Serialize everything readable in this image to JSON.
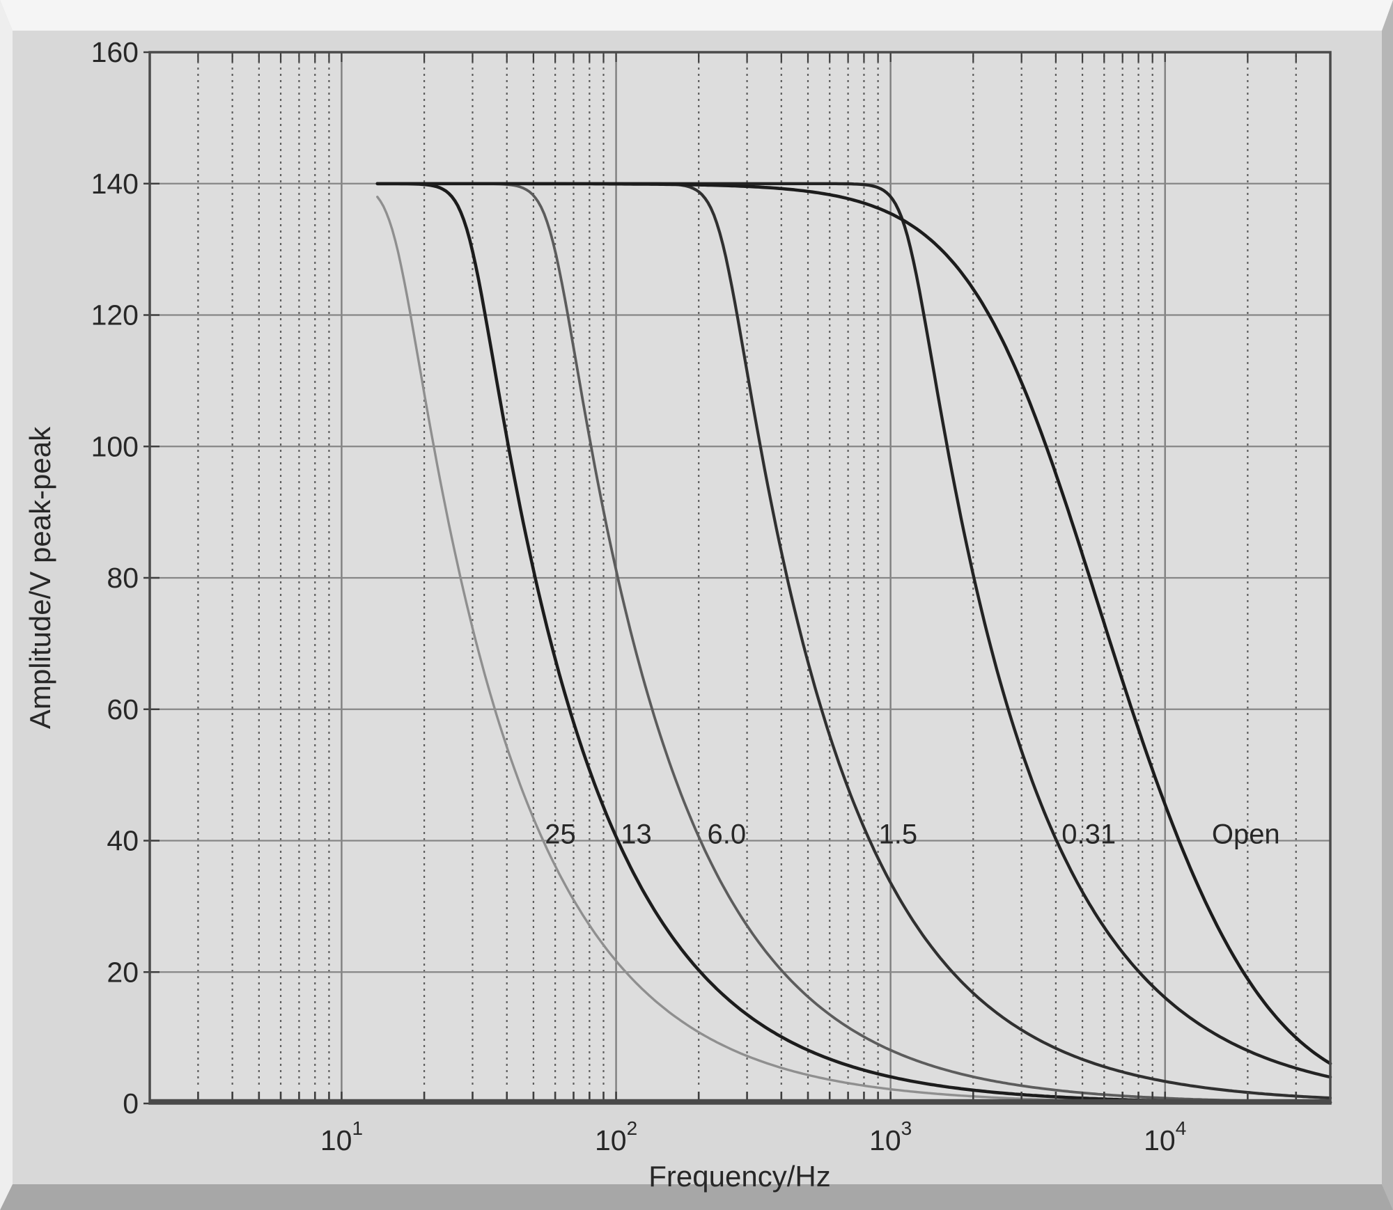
{
  "figure": {
    "background": "#d8d8d8",
    "plot_background": "#dddddd",
    "frame_colors": {
      "top_highlight": "#f5f5f5",
      "left_highlight": "#eeeeee",
      "right_shadow": "#b6b6b6",
      "bottom_shadow": "#a7a7a7"
    },
    "grid_colors": {
      "minor_dotted": "#5d5d5d",
      "major_vertical": "#7f7f7f",
      "major_horizontal": "#868686",
      "border": "#4a4a4a",
      "tick": "#3e3e3e"
    }
  },
  "chart_data": {
    "type": "line",
    "title": "",
    "xlabel": "Frequency/Hz",
    "ylabel": "Amplitude/V peak-peak",
    "x_scale": "log",
    "xlim": [
      2,
      40000
    ],
    "ylim": [
      0,
      160
    ],
    "y_ticks": [
      0,
      20,
      40,
      60,
      80,
      100,
      120,
      140,
      160
    ],
    "x_major_ticks": [
      10,
      100,
      1000,
      10000
    ],
    "x_tick_labels": [
      {
        "base": "10",
        "exp": "1",
        "value": 10
      },
      {
        "base": "10",
        "exp": "2",
        "value": 100
      },
      {
        "base": "10",
        "exp": "3",
        "value": 1000
      },
      {
        "base": "10",
        "exp": "4",
        "value": 10000
      }
    ],
    "grid": {
      "horizontal_major": true,
      "vertical_decades": true,
      "vertical_log_minor_dotted": true
    },
    "legend_position": "labels-on-curves",
    "plateau_v_pp": 140,
    "f_start_hz": 13.5,
    "f_end_hz": 40000,
    "series": [
      {
        "label": "25",
        "color": "#8f8f8f",
        "width": 3.4,
        "corner_hz": 15.5,
        "knee_sharpness": 12,
        "rolloff": "1/f",
        "second_pole_hz": null,
        "label_at": {
          "f_hz": 55,
          "v": 40
        },
        "points_f_v": [
          [
            13.5,
            138
          ],
          [
            15.5,
            132
          ],
          [
            20,
            106
          ],
          [
            30,
            72
          ],
          [
            54,
            40
          ],
          [
            100,
            21.7
          ],
          [
            200,
            10.9
          ],
          [
            500,
            4.3
          ],
          [
            1000,
            2.2
          ],
          [
            5000,
            0.4
          ],
          [
            40000,
            0.05
          ]
        ]
      },
      {
        "label": "13",
        "color": "#1c1c1c",
        "width": 4.6,
        "corner_hz": 29,
        "knee_sharpness": 12,
        "rolloff": "1/f",
        "second_pole_hz": null,
        "label_at": {
          "f_hz": 104,
          "v": 40
        },
        "points_f_v": [
          [
            13.5,
            140
          ],
          [
            29,
            132
          ],
          [
            40,
            99
          ],
          [
            60,
            67
          ],
          [
            103,
            40
          ],
          [
            200,
            20.3
          ],
          [
            500,
            8.1
          ],
          [
            1000,
            4.1
          ],
          [
            5000,
            0.8
          ],
          [
            40000,
            0.1
          ]
        ]
      },
      {
        "label": "6.0",
        "color": "#5c5c5c",
        "width": 3.8,
        "corner_hz": 58,
        "knee_sharpness": 12,
        "rolloff": "1/f",
        "second_pole_hz": null,
        "label_at": {
          "f_hz": 215,
          "v": 40
        },
        "points_f_v": [
          [
            13.5,
            140
          ],
          [
            58,
            132
          ],
          [
            80,
            99
          ],
          [
            120,
            67
          ],
          [
            203,
            40
          ],
          [
            400,
            20.3
          ],
          [
            1000,
            8.1
          ],
          [
            2000,
            4.1
          ],
          [
            10000,
            0.8
          ],
          [
            40000,
            0.2
          ]
        ]
      },
      {
        "label": "1.5",
        "color": "#303030",
        "width": 4.2,
        "corner_hz": 240,
        "knee_sharpness": 12,
        "rolloff": "1/f",
        "second_pole_hz": null,
        "label_at": {
          "f_hz": 905,
          "v": 40
        },
        "points_f_v": [
          [
            13.5,
            140
          ],
          [
            240,
            132
          ],
          [
            330,
            100
          ],
          [
            500,
            67
          ],
          [
            840,
            40
          ],
          [
            1700,
            19.8
          ],
          [
            5000,
            6.7
          ],
          [
            10000,
            3.4
          ],
          [
            40000,
            0.8
          ]
        ]
      },
      {
        "label": "0.31",
        "color": "#232323",
        "width": 4.4,
        "corner_hz": 1150,
        "knee_sharpness": 12,
        "rolloff": "1/f",
        "second_pole_hz": null,
        "label_at": {
          "f_hz": 4200,
          "v": 40
        },
        "points_f_v": [
          [
            13.5,
            140
          ],
          [
            1150,
            132
          ],
          [
            1600,
            100
          ],
          [
            2400,
            67
          ],
          [
            4025,
            40
          ],
          [
            8000,
            20.1
          ],
          [
            20000,
            8.1
          ],
          [
            40000,
            4.0
          ]
        ]
      },
      {
        "label": "Open",
        "color": "#1c1c1c",
        "width": 4.6,
        "corner_hz": 3900,
        "knee_sharpness": 2,
        "rolloff": "1/f",
        "second_pole_hz": 20000,
        "label_at": {
          "f_hz": 14800,
          "v": 40
        },
        "points_f_v": [
          [
            13.5,
            140
          ],
          [
            1000,
            135.5
          ],
          [
            2000,
            124.5
          ],
          [
            3900,
            97
          ],
          [
            5000,
            83.5
          ],
          [
            10000,
            45.5
          ],
          [
            20000,
            18.9
          ],
          [
            30000,
            10.4
          ],
          [
            40000,
            6.1
          ]
        ]
      }
    ]
  }
}
